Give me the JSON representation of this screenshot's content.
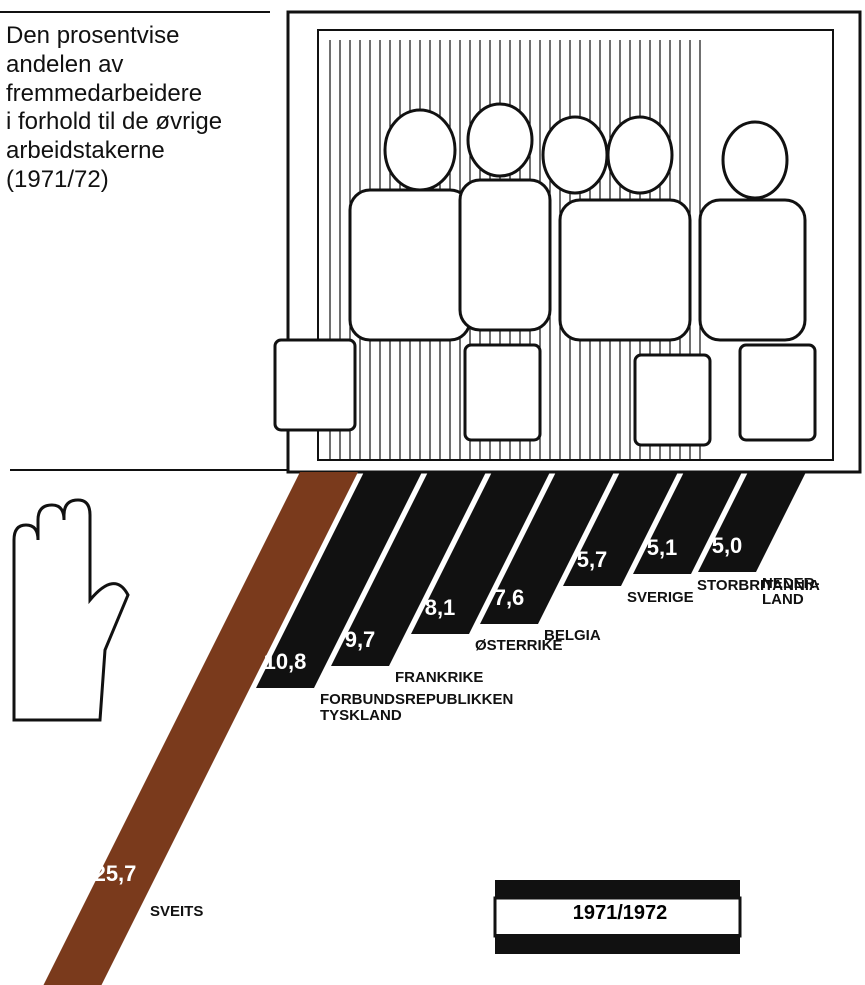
{
  "chart_data": {
    "type": "bar",
    "title": "Den prosentvise\nandelen av\nfremmedarbeidere\ni forhold til de øvrige\narbeidstakerne\n(1971/72)",
    "categories": [
      "SVEITS",
      "FORBUNDSREPUBLIKKEN\nTYSKLAND",
      "FRANKRIKE",
      "ØSTERRIKE",
      "BELGIA",
      "SVERIGE",
      "STORBRITANNIA",
      "NEDER-\nLAND"
    ],
    "values": [
      25.7,
      10.8,
      9.7,
      8.1,
      7.6,
      5.7,
      5.1,
      5.0
    ],
    "value_labels": [
      "25,7",
      "10,8",
      "9,7",
      "8,1",
      "7,6",
      "5,7",
      "5,1",
      "5,0"
    ],
    "colors": [
      "#7a3a1c",
      "#111111",
      "#111111",
      "#111111",
      "#111111",
      "#111111",
      "#111111",
      "#111111"
    ],
    "annotation": "1971/1972"
  }
}
